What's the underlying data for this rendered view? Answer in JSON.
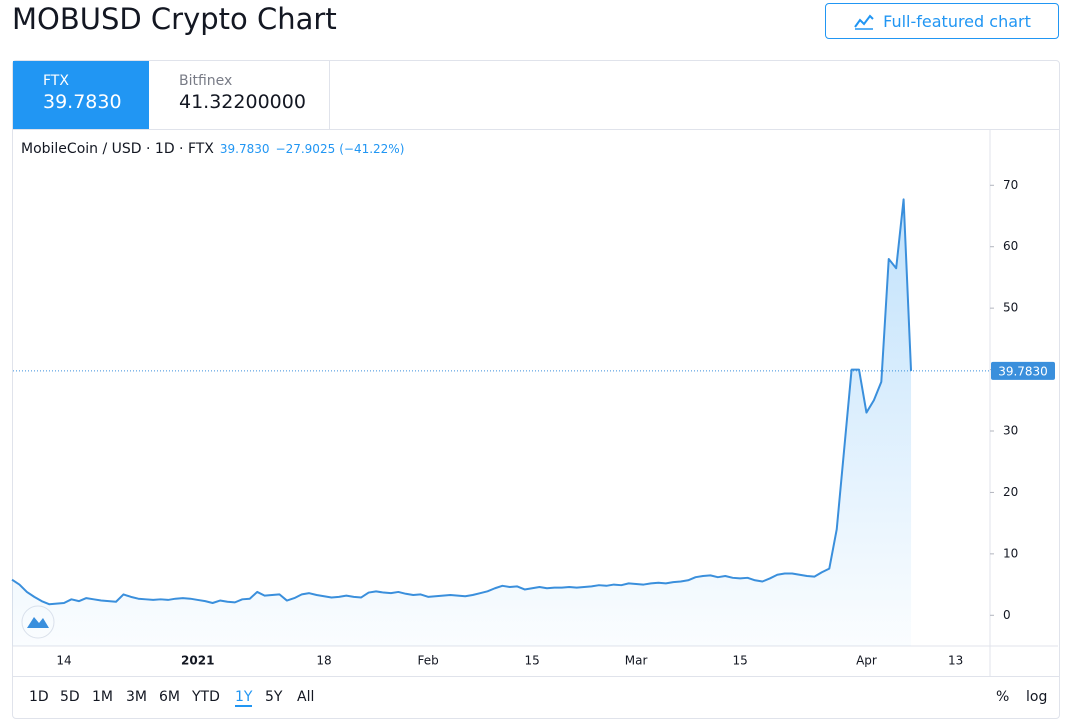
{
  "header": {
    "title": "MOBUSD Crypto Chart",
    "button": "Full-featured chart"
  },
  "exchanges": [
    {
      "name": "FTX",
      "price": "39.7830"
    },
    {
      "name": "Bitfinex",
      "price": "41.32200000"
    }
  ],
  "legend": {
    "symbol": "MobileCoin / USD · 1D · FTX",
    "last": "39.7830",
    "change": "−27.9025",
    "change_pct": "(−41.22%)"
  },
  "chart_data": {
    "type": "area",
    "line_color": "#3a8fdc",
    "categories": [
      null,
      null,
      null,
      null,
      null,
      null,
      null,
      "14",
      null,
      null,
      null,
      null,
      null,
      null,
      null,
      null,
      null,
      null,
      null,
      null,
      null,
      null,
      null,
      null,
      null,
      "2021",
      null,
      null,
      null,
      null,
      null,
      null,
      null,
      null,
      null,
      null,
      null,
      null,
      null,
      null,
      null,
      null,
      "18",
      null,
      null,
      null,
      null,
      null,
      null,
      null,
      null,
      null,
      null,
      null,
      null,
      null,
      "Feb",
      null,
      null,
      null,
      null,
      null,
      null,
      null,
      null,
      null,
      null,
      null,
      null,
      null,
      "15",
      null,
      null,
      null,
      null,
      null,
      null,
      null,
      null,
      null,
      null,
      null,
      null,
      null,
      "Mar",
      null,
      null,
      null,
      null,
      null,
      null,
      null,
      null,
      null,
      null,
      null,
      null,
      null,
      "15",
      null,
      null,
      null,
      null,
      null,
      null,
      null,
      null,
      null,
      null,
      null,
      null,
      null,
      null,
      null,
      null,
      "Apr",
      null,
      null,
      null,
      null,
      null,
      null,
      null,
      null,
      null,
      null,
      null,
      "13",
      null,
      null,
      null
    ],
    "values": [
      5.8,
      5.0,
      3.8,
      3.0,
      2.3,
      1.8,
      1.9,
      2.0,
      2.6,
      2.3,
      2.8,
      2.6,
      2.4,
      2.3,
      2.2,
      3.4,
      3.0,
      2.7,
      2.6,
      2.5,
      2.6,
      2.5,
      2.7,
      2.8,
      2.7,
      2.5,
      2.3,
      2.0,
      2.4,
      2.2,
      2.1,
      2.6,
      2.7,
      3.8,
      3.2,
      3.3,
      3.4,
      2.4,
      2.8,
      3.4,
      3.6,
      3.3,
      3.1,
      2.9,
      3.0,
      3.2,
      3.0,
      2.9,
      3.7,
      3.9,
      3.7,
      3.6,
      3.8,
      3.5,
      3.3,
      3.4,
      3.0,
      3.1,
      3.2,
      3.3,
      3.2,
      3.1,
      3.3,
      3.6,
      3.9,
      4.4,
      4.8,
      4.6,
      4.7,
      4.2,
      4.4,
      4.6,
      4.4,
      4.5,
      4.5,
      4.6,
      4.5,
      4.6,
      4.7,
      4.9,
      4.8,
      5.0,
      4.9,
      5.2,
      5.1,
      5.0,
      5.2,
      5.3,
      5.2,
      5.4,
      5.5,
      5.7,
      6.2,
      6.4,
      6.5,
      6.2,
      6.4,
      6.1,
      6.0,
      6.1,
      5.7,
      5.5,
      6.0,
      6.6,
      6.8,
      6.8,
      6.6,
      6.4,
      6.3,
      7.0,
      7.6,
      14,
      27,
      40,
      40,
      33,
      35,
      38,
      58,
      56.5,
      67.7,
      39.783,
      null,
      null,
      null,
      null,
      null,
      null,
      null,
      null,
      null
    ],
    "ylim": [
      -5,
      79
    ],
    "yticks": [
      0,
      10,
      20,
      30,
      40,
      50,
      60,
      70
    ],
    "price_line": {
      "value": 39.783,
      "label": "39.7830"
    }
  },
  "range_buttons": [
    "1D",
    "5D",
    "1M",
    "3M",
    "6M",
    "YTD",
    "1Y",
    "5Y",
    "All"
  ],
  "active_range": "1Y",
  "scale_buttons": [
    "%",
    "log"
  ]
}
